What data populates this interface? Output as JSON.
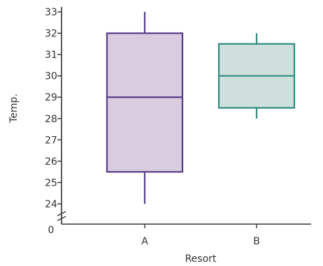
{
  "chart_data": {
    "type": "box",
    "categories": [
      "A",
      "B"
    ],
    "xlabel": "Resort",
    "ylabel": "Temp.",
    "ylim": [
      24,
      33
    ],
    "yticks": [
      24,
      25,
      26,
      27,
      28,
      29,
      30,
      31,
      32,
      33
    ],
    "axis_origin_label": "0",
    "axis_break": true,
    "grid": false,
    "boxes": [
      {
        "category": "A",
        "min": 24,
        "q1": 25.5,
        "median": 29,
        "q3": 32,
        "max": 33,
        "fill": "#d9ccdf",
        "stroke": "#5a3d8a"
      },
      {
        "category": "B",
        "min": 28,
        "q1": 28.5,
        "median": 30,
        "q3": 31.5,
        "max": 32,
        "fill": "#cfe0dc",
        "stroke": "#2f8a7f"
      }
    ]
  }
}
